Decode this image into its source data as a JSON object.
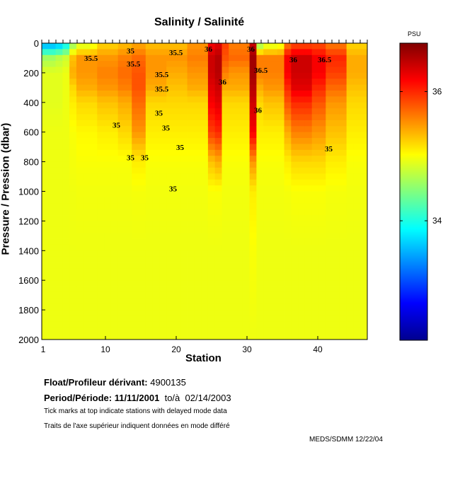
{
  "chart_data": {
    "type": "heatmap",
    "title": "Salinity / Salinité",
    "xlabel": "Station",
    "ylabel": "Pressure / Pression (dbar)",
    "xlim": [
      1,
      47
    ],
    "ylim": [
      2000,
      0
    ],
    "xticks": [
      1,
      10,
      20,
      30,
      40
    ],
    "yticks": [
      0,
      200,
      400,
      600,
      800,
      1000,
      1200,
      1400,
      1600,
      1800,
      2000
    ],
    "colorbar": {
      "label": "PSU",
      "range": [
        32.15,
        36.75
      ],
      "ticks": [
        34,
        36
      ],
      "colormap": "jet"
    },
    "pressure_levels": [
      0,
      100,
      200,
      300,
      400,
      600,
      800,
      1000,
      1400,
      2000
    ],
    "stations": [
      [
        33.4,
        34.6,
        34.9,
        34.9,
        34.9,
        34.95,
        34.95,
        34.95,
        34.95,
        34.95
      ],
      [
        33.4,
        34.6,
        34.9,
        34.9,
        34.9,
        34.95,
        34.95,
        34.95,
        34.95,
        34.95
      ],
      [
        33.5,
        34.7,
        34.9,
        34.9,
        34.9,
        34.95,
        34.95,
        34.95,
        34.95,
        34.95
      ],
      [
        33.8,
        34.8,
        34.95,
        34.95,
        34.95,
        34.95,
        34.95,
        34.95,
        34.95,
        34.95
      ],
      [
        34.5,
        35.3,
        35.4,
        35.2,
        35.1,
        35.0,
        34.98,
        34.96,
        34.95,
        34.95
      ],
      [
        34.8,
        35.5,
        35.5,
        35.4,
        35.2,
        35.05,
        35.0,
        34.97,
        34.95,
        34.95
      ],
      [
        34.8,
        35.5,
        35.5,
        35.4,
        35.2,
        35.05,
        35.0,
        34.97,
        34.95,
        34.95
      ],
      [
        34.9,
        35.5,
        35.5,
        35.4,
        35.2,
        35.05,
        35.0,
        34.97,
        34.95,
        34.95
      ],
      [
        35.2,
        35.5,
        35.6,
        35.5,
        35.3,
        35.1,
        35.0,
        34.97,
        34.95,
        34.95
      ],
      [
        35.2,
        35.5,
        35.6,
        35.5,
        35.3,
        35.1,
        35.0,
        34.97,
        34.95,
        34.95
      ],
      [
        35.2,
        35.5,
        35.6,
        35.5,
        35.3,
        35.1,
        35.0,
        34.97,
        34.95,
        34.95
      ],
      [
        35.3,
        35.6,
        35.7,
        35.6,
        35.4,
        35.2,
        35.0,
        34.97,
        34.95,
        34.95
      ],
      [
        35.3,
        35.6,
        35.7,
        35.6,
        35.4,
        35.2,
        35.0,
        34.97,
        34.95,
        34.95
      ],
      [
        35.4,
        35.7,
        35.8,
        35.8,
        35.7,
        35.5,
        35.1,
        34.98,
        34.95,
        34.95
      ],
      [
        35.4,
        35.7,
        35.8,
        35.8,
        35.7,
        35.5,
        35.1,
        34.98,
        34.95,
        34.95
      ],
      [
        35.3,
        35.5,
        35.5,
        35.4,
        35.2,
        35.1,
        35.0,
        34.97,
        34.95,
        34.95
      ],
      [
        35.3,
        35.5,
        35.5,
        35.4,
        35.2,
        35.1,
        35.0,
        34.97,
        34.95,
        34.95
      ],
      [
        35.3,
        35.5,
        35.5,
        35.4,
        35.2,
        35.1,
        35.0,
        34.97,
        34.95,
        34.95
      ],
      [
        35.3,
        35.5,
        35.4,
        35.3,
        35.2,
        35.1,
        35.0,
        34.97,
        34.95,
        34.95
      ],
      [
        35.3,
        35.5,
        35.4,
        35.3,
        35.2,
        35.1,
        35.0,
        34.97,
        34.95,
        34.95
      ],
      [
        35.3,
        35.5,
        35.4,
        35.3,
        35.2,
        35.1,
        35.0,
        34.97,
        34.95,
        34.95
      ],
      [
        35.5,
        35.6,
        35.5,
        35.4,
        35.2,
        35.1,
        35.0,
        34.97,
        34.95,
        34.95
      ],
      [
        35.5,
        35.6,
        35.5,
        35.4,
        35.2,
        35.1,
        35.0,
        34.97,
        34.95,
        34.95
      ],
      [
        35.5,
        35.6,
        35.5,
        35.4,
        35.2,
        35.1,
        35.0,
        34.97,
        34.95,
        34.95
      ],
      [
        36.2,
        36.4,
        36.4,
        36.3,
        36.2,
        35.9,
        35.3,
        35.0,
        34.95,
        34.95
      ],
      [
        36.3,
        36.5,
        36.5,
        36.4,
        36.3,
        36.0,
        35.4,
        35.0,
        34.95,
        34.95
      ],
      [
        35.9,
        35.8,
        35.6,
        35.4,
        35.2,
        35.1,
        35.0,
        34.97,
        34.95,
        34.95
      ],
      [
        35.6,
        35.7,
        35.5,
        35.4,
        35.2,
        35.1,
        35.0,
        34.97,
        34.95,
        34.95
      ],
      [
        35.6,
        35.7,
        35.5,
        35.4,
        35.2,
        35.1,
        35.0,
        34.97,
        34.95,
        34.95
      ],
      [
        35.6,
        35.7,
        35.5,
        35.4,
        35.2,
        35.1,
        35.0,
        34.97,
        34.95,
        34.95
      ],
      [
        36.4,
        36.6,
        36.6,
        36.5,
        36.4,
        36.2,
        35.5,
        35.1,
        35.0,
        34.95
      ],
      [
        34.5,
        35.6,
        35.6,
        35.4,
        35.2,
        35.1,
        35.0,
        34.97,
        34.95,
        34.95
      ],
      [
        34.8,
        35.6,
        35.6,
        35.5,
        35.3,
        35.1,
        35.0,
        34.97,
        34.95,
        34.95
      ],
      [
        34.8,
        35.6,
        35.6,
        35.5,
        35.3,
        35.1,
        35.0,
        34.97,
        34.95,
        34.95
      ],
      [
        34.9,
        35.6,
        35.6,
        35.5,
        35.3,
        35.1,
        35.0,
        34.97,
        34.95,
        34.95
      ],
      [
        35.6,
        36.2,
        36.2,
        36.0,
        35.8,
        35.4,
        35.1,
        34.98,
        34.95,
        34.95
      ],
      [
        35.8,
        36.4,
        36.4,
        36.3,
        36.0,
        35.6,
        35.2,
        35.0,
        34.95,
        34.95
      ],
      [
        35.8,
        36.4,
        36.4,
        36.3,
        36.0,
        35.6,
        35.2,
        35.0,
        34.95,
        34.95
      ],
      [
        35.8,
        36.4,
        36.4,
        36.3,
        36.0,
        35.6,
        35.2,
        35.0,
        34.95,
        34.95
      ],
      [
        35.8,
        36.2,
        36.2,
        36.0,
        35.8,
        35.5,
        35.2,
        35.0,
        34.95,
        34.95
      ],
      [
        35.8,
        36.2,
        36.2,
        36.0,
        35.8,
        35.5,
        35.2,
        35.0,
        34.95,
        34.95
      ],
      [
        35.6,
        36.0,
        35.9,
        35.7,
        35.5,
        35.3,
        35.1,
        34.98,
        34.95,
        34.95
      ],
      [
        35.6,
        36.0,
        35.9,
        35.7,
        35.5,
        35.3,
        35.1,
        34.98,
        34.95,
        34.95
      ],
      [
        35.6,
        36.0,
        35.9,
        35.7,
        35.5,
        35.3,
        35.1,
        34.98,
        34.95,
        34.95
      ],
      [
        35.2,
        35.4,
        35.4,
        35.3,
        35.2,
        35.1,
        35.0,
        34.97,
        34.95,
        34.95
      ],
      [
        35.2,
        35.4,
        35.4,
        35.3,
        35.2,
        35.1,
        35.0,
        34.97,
        34.95,
        34.95
      ],
      [
        35.2,
        35.4,
        35.4,
        35.3,
        35.2,
        35.1,
        35.0,
        34.97,
        34.95,
        34.95
      ]
    ],
    "contour_labels": [
      {
        "text": "35.5",
        "station": 7,
        "pressure": 120
      },
      {
        "text": "35",
        "station": 13,
        "pressure": 70
      },
      {
        "text": "35.5",
        "station": 13,
        "pressure": 100
      },
      {
        "text": "35.5",
        "station": 19,
        "pressure": 80
      },
      {
        "text": "35.5",
        "station": 17,
        "pressure": 230
      },
      {
        "text": "35.5",
        "station": 17,
        "pressure": 270
      },
      {
        "text": "35",
        "station": 17,
        "pressure": 490
      },
      {
        "text": "35",
        "station": 11,
        "pressure": 570
      },
      {
        "text": "35",
        "station": 18,
        "pressure": 590
      },
      {
        "text": "35",
        "station": 20,
        "pressure": 720
      },
      {
        "text": "35",
        "station": 13,
        "pressure": 790
      },
      {
        "text": "35",
        "station": 15,
        "pressure": 790
      },
      {
        "text": "35",
        "station": 19,
        "pressure": 1000
      },
      {
        "text": "36",
        "station": 26,
        "pressure": 280
      },
      {
        "text": "36.5",
        "station": 31,
        "pressure": 200
      },
      {
        "text": "36",
        "station": 31,
        "pressure": 470
      },
      {
        "text": "36",
        "station": 24,
        "pressure": 30
      },
      {
        "text": "36",
        "station": 30,
        "pressure": 40
      },
      {
        "text": "36",
        "station": 36,
        "pressure": 130
      },
      {
        "text": "36.5",
        "station": 40,
        "pressure": 130
      },
      {
        "text": "35",
        "station": 41,
        "pressure": 730
      }
    ]
  },
  "info": {
    "float_label": "Float/Profileur dérivant:",
    "float_id": "4900135",
    "period_label": "Period/Période:",
    "period_start": "11/11/2001",
    "period_sep": "to/à",
    "period_end": "02/14/2003",
    "note_en": "Tick marks at top indicate stations with delayed mode data",
    "note_fr": "Traits de l'axe supérieur indiquent données en mode différé",
    "credit": "MEDS/SDMM  12/22/04"
  }
}
